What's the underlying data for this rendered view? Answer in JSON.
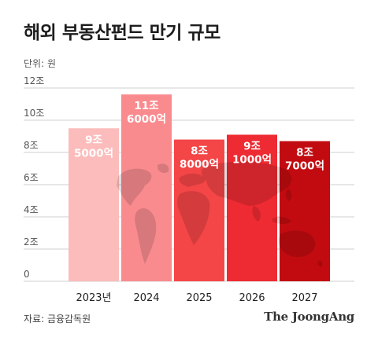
{
  "title": "해외 부동산펀드 만기 규모",
  "unit": "단위: 원",
  "source": "자료: 금융감독원",
  "brand": "The JoongAng",
  "colors": {
    "bars": [
      "#fcbcbc",
      "#f98b8f",
      "#f44547",
      "#ee2a32",
      "#c20b10"
    ],
    "grid": "#cfcfcf",
    "map": "#000000"
  },
  "chart_data": {
    "type": "bar",
    "categories": [
      "2023년",
      "2024",
      "2025",
      "2026",
      "2027"
    ],
    "values": [
      9.5,
      11.6,
      8.8,
      9.1,
      8.7
    ],
    "data_labels": [
      [
        "9조",
        "5000억"
      ],
      [
        "11조",
        "6000억"
      ],
      [
        "8조",
        "8000억"
      ],
      [
        "9조",
        "1000억"
      ],
      [
        "8조",
        "7000억"
      ]
    ],
    "yticks": [
      "0",
      "2조",
      "4조",
      "6조",
      "8조",
      "10조",
      "12조"
    ],
    "ylim": [
      0,
      12
    ],
    "grid": true
  }
}
